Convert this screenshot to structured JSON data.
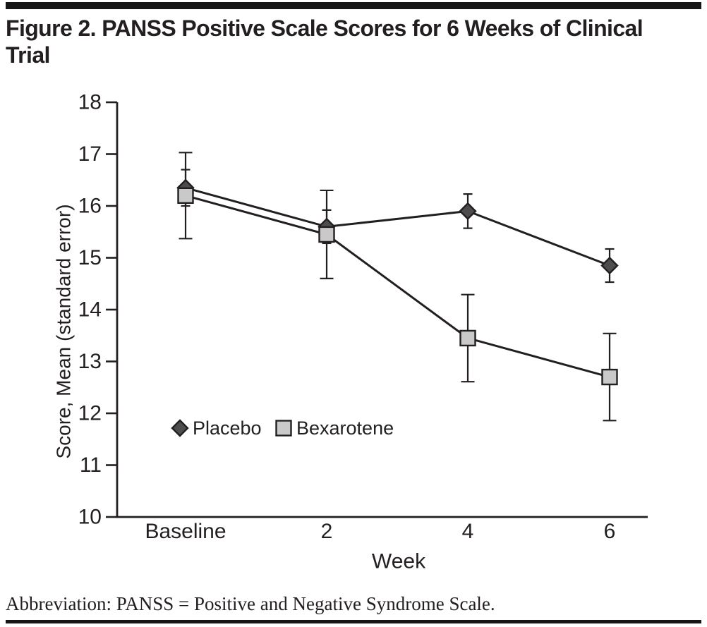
{
  "figure": {
    "title": "Figure 2. PANSS Positive Scale Scores for 6 Weeks of Clinical Trial",
    "title_lines": [
      "Figure 2. PANSS Positive Scale Scores for 6 Weeks of Clinical",
      "Trial"
    ],
    "abbreviation": "Abbreviation: PANSS = Positive and Negative Syndrome Scale."
  },
  "colors": {
    "ink": "#231f20",
    "placebo_fill": "#4d4d4d",
    "bexarotene_fill": "#c9c9c9"
  },
  "chart_data": {
    "type": "line",
    "title": "",
    "categories": [
      "Baseline",
      "2",
      "4",
      "6"
    ],
    "xlabel": "Week",
    "ylabel": "Score, Mean (standard error)",
    "ylim": [
      10,
      18
    ],
    "y_ticks": [
      10,
      11,
      12,
      13,
      14,
      15,
      16,
      17,
      18
    ],
    "grid": false,
    "legend_position": "inside-lower-left",
    "error_bars": "standard error",
    "series": [
      {
        "name": "Placebo",
        "marker": "diamond",
        "fill": "#4d4d4d",
        "values": [
          16.35,
          15.6,
          15.9,
          14.85
        ],
        "se": [
          0.35,
          0.32,
          0.33,
          0.32
        ]
      },
      {
        "name": "Bexarotene",
        "marker": "square",
        "fill": "#c9c9c9",
        "values": [
          16.2,
          15.45,
          13.45,
          12.7
        ],
        "se": [
          0.83,
          0.85,
          0.84,
          0.84
        ]
      }
    ]
  }
}
